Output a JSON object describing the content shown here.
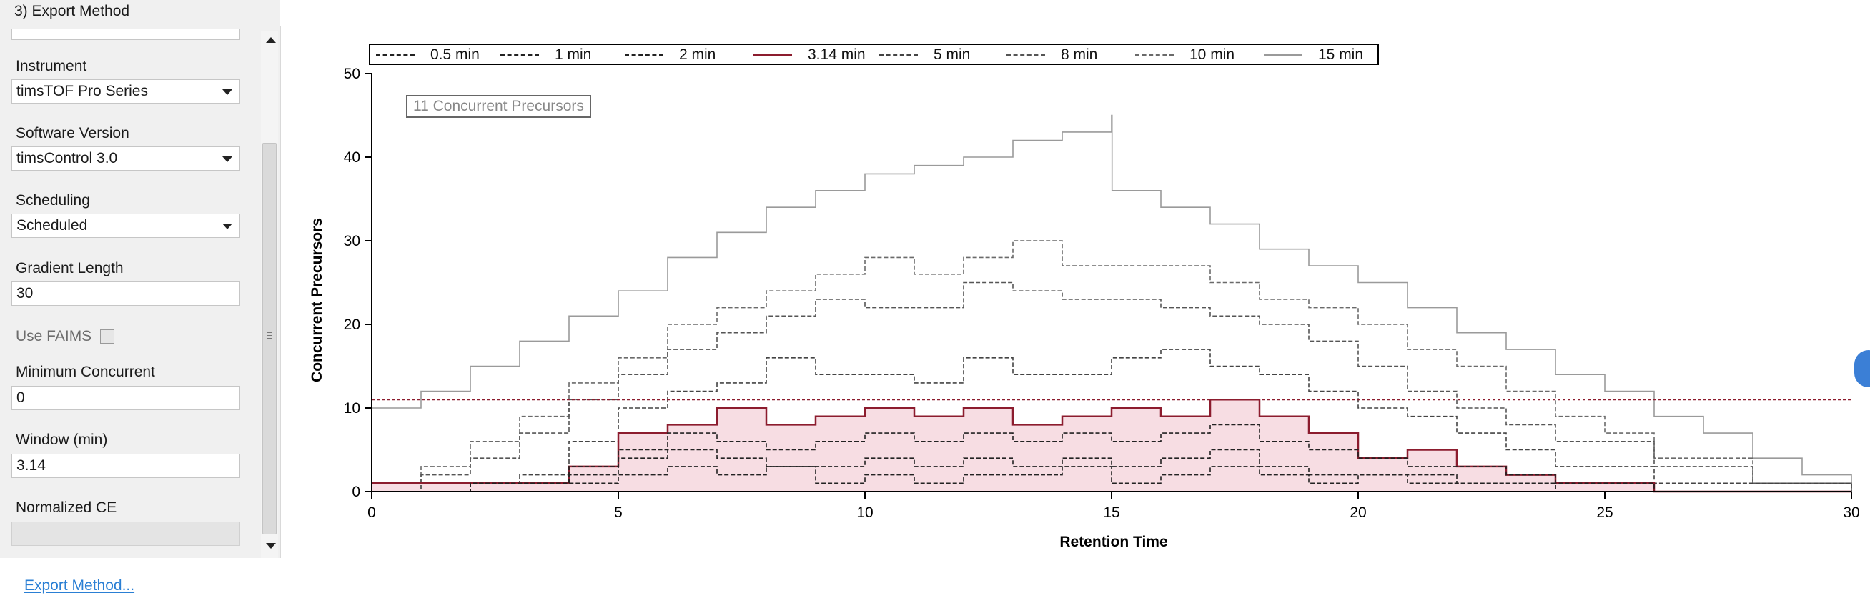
{
  "window": {
    "title": "3) Export Method"
  },
  "form": {
    "instrument": {
      "label": "Instrument",
      "value": "timsTOF Pro Series"
    },
    "software_version": {
      "label": "Software Version",
      "value": "timsControl 3.0"
    },
    "scheduling": {
      "label": "Scheduling",
      "value": "Scheduled"
    },
    "gradient_length": {
      "label": "Gradient Length",
      "value": "30"
    },
    "use_faims": {
      "label": "Use FAIMS",
      "checked": false
    },
    "minimum_concurrent": {
      "label": "Minimum Concurrent",
      "value": "0"
    },
    "window_min": {
      "label": "Window (min)",
      "value": "3.14"
    },
    "normalized_ce": {
      "label": "Normalized CE",
      "value": ""
    }
  },
  "export_link": "Export Method...",
  "icons": {
    "scroll_up": "triangle-up-icon",
    "scroll_down": "triangle-down-icon",
    "dropdown": "chevron-down-icon",
    "grip": "grip-lines-icon"
  },
  "chart_data": {
    "type": "line",
    "title": "",
    "xlabel": "Retention Time",
    "ylabel": "Concurrent Precursors",
    "xlim": [
      0,
      30
    ],
    "ylim": [
      0,
      50
    ],
    "x_ticks": [
      0,
      5,
      10,
      15,
      20,
      25,
      30
    ],
    "y_ticks": [
      0,
      10,
      20,
      30,
      40,
      50
    ],
    "grid": false,
    "legend_placement": "top",
    "annotation": "11 Concurrent Precursors",
    "threshold": {
      "value": 11,
      "color": "#8c1c2e"
    },
    "series": [
      {
        "name": "0.5 min",
        "color": "#222222",
        "dash": "dash",
        "x": [
          0,
          2,
          4,
          5,
          6,
          7,
          8,
          9,
          10,
          11,
          12,
          13,
          14,
          15,
          16,
          17,
          18,
          19,
          20,
          21,
          22,
          23,
          24,
          26,
          30
        ],
        "y": [
          0,
          1,
          1,
          2,
          3,
          2,
          3,
          1,
          2,
          1,
          2,
          2,
          3,
          1,
          2,
          3,
          2,
          1,
          2,
          1,
          1,
          1,
          0,
          0,
          0
        ]
      },
      {
        "name": "1 min",
        "color": "#222222",
        "dash": "dash",
        "x": [
          0,
          2,
          4,
          5,
          6,
          7,
          8,
          9,
          10,
          11,
          12,
          13,
          14,
          15,
          16,
          17,
          18,
          19,
          20,
          21,
          22,
          23,
          24,
          26,
          30
        ],
        "y": [
          0,
          1,
          2,
          4,
          5,
          4,
          3,
          3,
          4,
          3,
          4,
          3,
          4,
          3,
          4,
          5,
          3,
          2,
          2,
          2,
          1,
          1,
          0,
          0,
          0
        ]
      },
      {
        "name": "2 min",
        "color": "#222222",
        "dash": "dash",
        "x": [
          0,
          2,
          4,
          5,
          6,
          7,
          8,
          9,
          10,
          11,
          12,
          13,
          14,
          15,
          16,
          17,
          18,
          19,
          20,
          21,
          22,
          23,
          24,
          26,
          30
        ],
        "y": [
          0,
          1,
          3,
          5,
          7,
          6,
          5,
          6,
          7,
          6,
          7,
          6,
          7,
          6,
          7,
          8,
          6,
          5,
          4,
          3,
          3,
          2,
          1,
          0,
          0
        ]
      },
      {
        "name": "3.14 min",
        "color": "#8c1c2e",
        "dash": "solid",
        "fill": "#f7dde3",
        "x": [
          0,
          2,
          4,
          5,
          6,
          7,
          8,
          9,
          10,
          11,
          12,
          13,
          14,
          15,
          16,
          17,
          18,
          19,
          20,
          21,
          22,
          23,
          24,
          26,
          30
        ],
        "y": [
          1,
          1,
          3,
          7,
          8,
          10,
          8,
          9,
          10,
          9,
          10,
          8,
          9,
          10,
          9,
          11,
          9,
          7,
          4,
          5,
          3,
          2,
          1,
          0,
          0
        ]
      },
      {
        "name": "5 min",
        "color": "#444444",
        "dash": "dash",
        "x": [
          0,
          2,
          3,
          4,
          5,
          6,
          7,
          8,
          9,
          10,
          11,
          12,
          13,
          14,
          15,
          16,
          17,
          18,
          19,
          20,
          21,
          22,
          23,
          24,
          26,
          30
        ],
        "y": [
          0,
          1,
          2,
          6,
          10,
          12,
          13,
          16,
          14,
          14,
          13,
          16,
          14,
          14,
          16,
          17,
          15,
          14,
          12,
          10,
          9,
          7,
          5,
          3,
          1,
          0
        ]
      },
      {
        "name": "8 min",
        "color": "#555555",
        "dash": "dash",
        "x": [
          0,
          1,
          2,
          3,
          4,
          5,
          6,
          7,
          8,
          9,
          10,
          11,
          12,
          13,
          14,
          15,
          16,
          17,
          18,
          19,
          20,
          21,
          22,
          23,
          24,
          26,
          28,
          30
        ],
        "y": [
          0,
          2,
          4,
          7,
          11,
          14,
          17,
          19,
          21,
          23,
          22,
          22,
          25,
          24,
          23,
          23,
          22,
          21,
          20,
          18,
          15,
          12,
          10,
          8,
          6,
          3,
          1,
          0
        ]
      },
      {
        "name": "10 min",
        "color": "#6a6a6a",
        "dash": "dash",
        "x": [
          0,
          1,
          2,
          3,
          4,
          5,
          6,
          7,
          8,
          9,
          10,
          11,
          12,
          13,
          14,
          15,
          16,
          17,
          18,
          19,
          20,
          21,
          22,
          23,
          24,
          25,
          26,
          28,
          30
        ],
        "y": [
          0,
          3,
          6,
          9,
          13,
          16,
          20,
          22,
          24,
          26,
          28,
          26,
          28,
          30,
          27,
          27,
          27,
          25,
          23,
          22,
          20,
          17,
          15,
          12,
          9,
          7,
          4,
          1,
          0
        ]
      },
      {
        "name": "15 min",
        "color": "#9a9a9a",
        "dash": "solid",
        "x": [
          0,
          1,
          2,
          3,
          4,
          5,
          6,
          7,
          8,
          9,
          10,
          11,
          12,
          13,
          14,
          15,
          15.01,
          16,
          17,
          18,
          19,
          20,
          21,
          22,
          23,
          24,
          25,
          26,
          27,
          28,
          29,
          30
        ],
        "y": [
          10,
          12,
          15,
          18,
          21,
          24,
          28,
          31,
          34,
          36,
          38,
          39,
          40,
          42,
          43,
          45,
          36,
          34,
          32,
          29,
          27,
          25,
          22,
          19,
          17,
          14,
          12,
          9,
          7,
          4,
          2,
          1
        ]
      }
    ]
  }
}
